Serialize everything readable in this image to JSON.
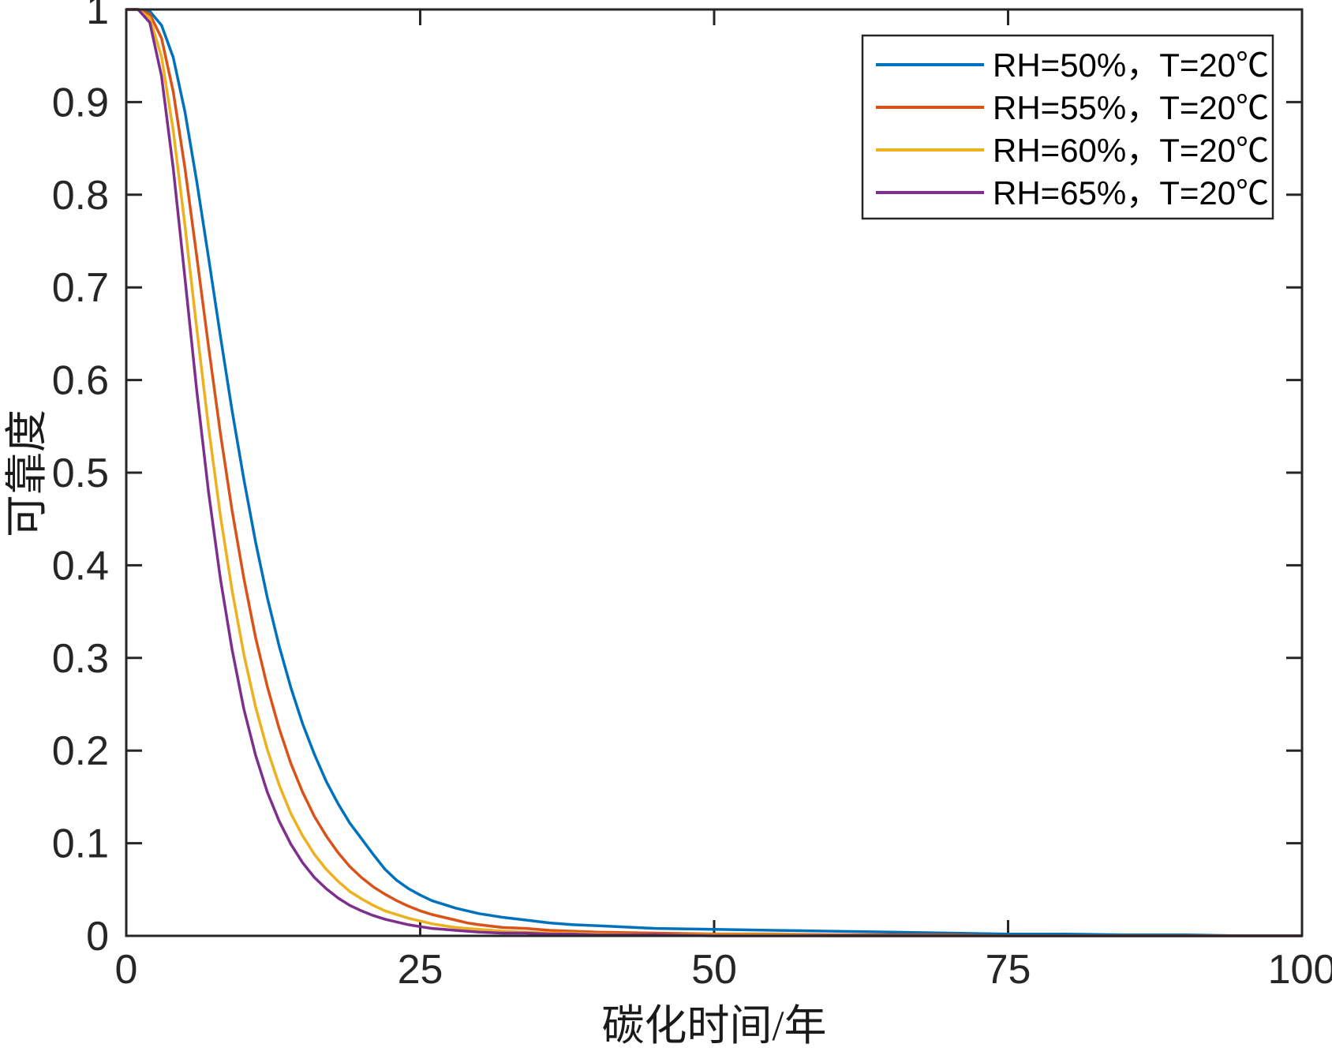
{
  "figure": {
    "background": "#ffffff",
    "axis_color": "#262626",
    "tick_label_color": "#262626"
  },
  "legend": {
    "background": "#ffffff",
    "border_color": "#262626",
    "position": "top-right"
  },
  "chart_data": {
    "type": "line",
    "title": "",
    "xlabel": "碳化时间/年",
    "ylabel": "可靠度",
    "xlim": [
      0,
      100
    ],
    "ylim": [
      0,
      1
    ],
    "xticks": [
      "0",
      "25",
      "50",
      "75",
      "100"
    ],
    "yticks": [
      "0",
      "0.1",
      "0.2",
      "0.3",
      "0.4",
      "0.5",
      "0.6",
      "0.7",
      "0.8",
      "0.9",
      "1"
    ],
    "grid": false,
    "legend_position": "top-right",
    "x": [
      0,
      1,
      2,
      3,
      4,
      5,
      6,
      7,
      8,
      9,
      10,
      11,
      12,
      13,
      14,
      15,
      16,
      17,
      18,
      19,
      20,
      21,
      22,
      23,
      24,
      25,
      26,
      27,
      28,
      29,
      30,
      32,
      34,
      36,
      38,
      40,
      45,
      50,
      55,
      60,
      65,
      70,
      75,
      80,
      85,
      90,
      95,
      100
    ],
    "series": [
      {
        "name": "RH=50%，T=20℃",
        "color": "#0072BD",
        "values": [
          1.0,
          1.0,
          0.998,
          0.983,
          0.948,
          0.889,
          0.814,
          0.732,
          0.648,
          0.567,
          0.493,
          0.425,
          0.365,
          0.313,
          0.268,
          0.229,
          0.196,
          0.167,
          0.143,
          0.122,
          0.105,
          0.088,
          0.072,
          0.06,
          0.051,
          0.044,
          0.038,
          0.034,
          0.03,
          0.027,
          0.024,
          0.02,
          0.017,
          0.014,
          0.012,
          0.011,
          0.008,
          0.007,
          0.006,
          0.005,
          0.004,
          0.003,
          0.002,
          0.002,
          0.001,
          0.001,
          0.0,
          0.0
        ]
      },
      {
        "name": "RH=55%，T=20℃",
        "color": "#D95319",
        "values": [
          1.0,
          1.0,
          0.995,
          0.969,
          0.911,
          0.828,
          0.733,
          0.636,
          0.543,
          0.459,
          0.386,
          0.322,
          0.269,
          0.224,
          0.186,
          0.155,
          0.129,
          0.108,
          0.09,
          0.075,
          0.063,
          0.053,
          0.045,
          0.038,
          0.032,
          0.027,
          0.023,
          0.02,
          0.017,
          0.014,
          0.012,
          0.009,
          0.008,
          0.006,
          0.005,
          0.004,
          0.003,
          0.002,
          0.002,
          0.001,
          0.001,
          0.001,
          0.0,
          0.0,
          0.0,
          0.0,
          0.0,
          0.0
        ]
      },
      {
        "name": "RH=60%，T=20℃",
        "color": "#EDB120",
        "values": [
          1.0,
          1.0,
          0.991,
          0.949,
          0.869,
          0.766,
          0.655,
          0.549,
          0.454,
          0.373,
          0.304,
          0.247,
          0.201,
          0.163,
          0.132,
          0.108,
          0.088,
          0.072,
          0.059,
          0.048,
          0.04,
          0.033,
          0.027,
          0.023,
          0.019,
          0.016,
          0.013,
          0.011,
          0.009,
          0.008,
          0.007,
          0.005,
          0.004,
          0.003,
          0.003,
          0.002,
          0.001,
          0.001,
          0.001,
          0.0,
          0.0,
          0.0,
          0.0,
          0.0,
          0.0,
          0.0,
          0.0,
          0.0
        ]
      },
      {
        "name": "RH=65%，T=20℃",
        "color": "#7E2F8E",
        "values": [
          1.0,
          1.0,
          0.986,
          0.928,
          0.828,
          0.709,
          0.588,
          0.479,
          0.386,
          0.309,
          0.245,
          0.195,
          0.155,
          0.124,
          0.099,
          0.079,
          0.063,
          0.051,
          0.041,
          0.033,
          0.027,
          0.022,
          0.018,
          0.015,
          0.012,
          0.01,
          0.008,
          0.007,
          0.006,
          0.005,
          0.004,
          0.003,
          0.003,
          0.002,
          0.002,
          0.001,
          0.001,
          0.0,
          0.0,
          0.0,
          0.0,
          0.0,
          0.0,
          0.0,
          0.0,
          0.0,
          0.0,
          0.0
        ]
      }
    ]
  }
}
